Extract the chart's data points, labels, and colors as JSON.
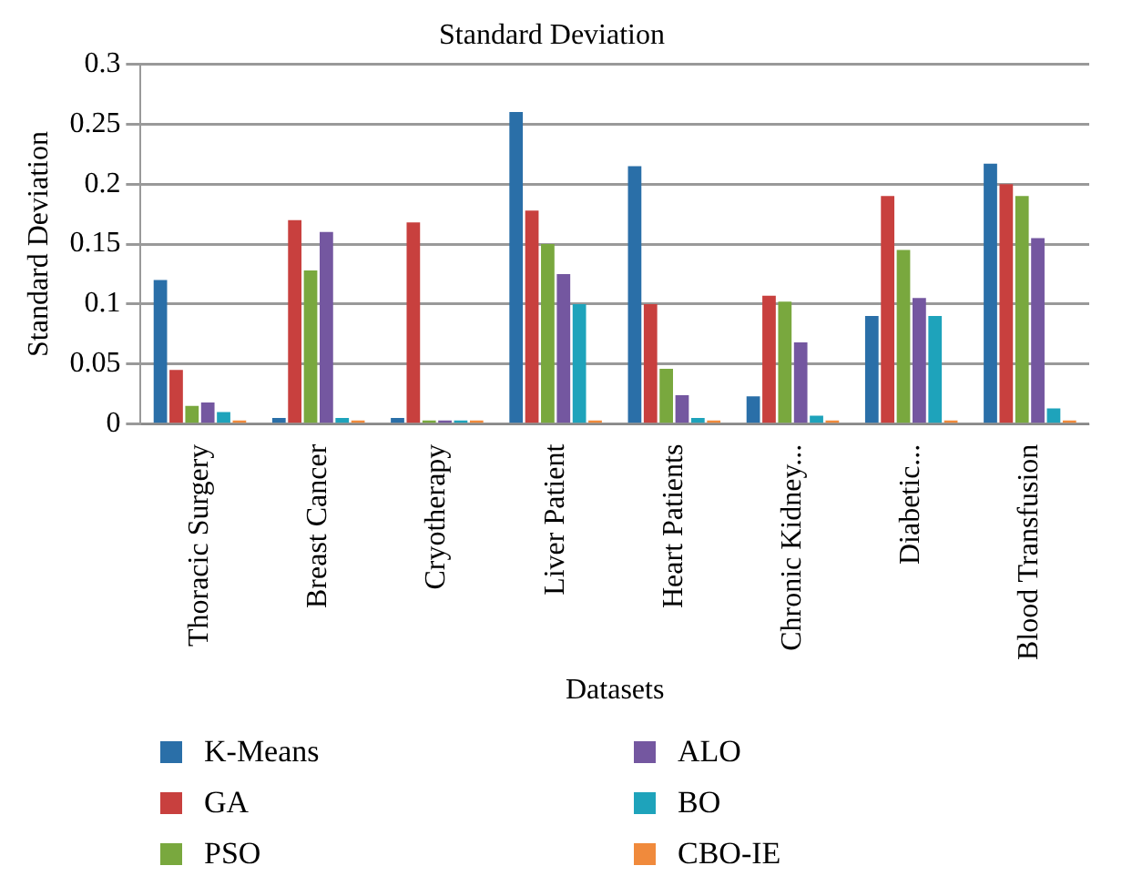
{
  "chart_data": {
    "type": "bar",
    "title": "Standard Deviation",
    "xlabel": "Datasets",
    "ylabel": "Standard Deviation",
    "categories": [
      "Thoracic Surgery",
      "Breast Cancer",
      "Cryotherapy",
      "Liver Patient",
      "Heart Patients",
      "Chronic Kidney...",
      "Diabetic...",
      "Blood Transfusion"
    ],
    "series": [
      {
        "name": "K-Means",
        "color": "#2a6fa8",
        "values": [
          0.12,
          0.005,
          0.005,
          0.26,
          0.215,
          0.023,
          0.09,
          0.217
        ]
      },
      {
        "name": "GA",
        "color": "#c8403e",
        "values": [
          0.045,
          0.17,
          0.168,
          0.178,
          0.1,
          0.107,
          0.19,
          0.2
        ]
      },
      {
        "name": "PSO",
        "color": "#79a83e",
        "values": [
          0.015,
          0.128,
          0.003,
          0.15,
          0.046,
          0.102,
          0.145,
          0.19
        ]
      },
      {
        "name": "ALO",
        "color": "#7457a0",
        "values": [
          0.018,
          0.16,
          0.003,
          0.125,
          0.024,
          0.068,
          0.105,
          0.155
        ]
      },
      {
        "name": "BO",
        "color": "#1ea3bb",
        "values": [
          0.01,
          0.005,
          0.003,
          0.1,
          0.005,
          0.007,
          0.09,
          0.013
        ]
      },
      {
        "name": "CBO-IE",
        "color": "#f08a3c",
        "values": [
          0.003,
          0.003,
          0.003,
          0.003,
          0.003,
          0.003,
          0.003,
          0.003
        ]
      }
    ],
    "ylim": [
      0,
      0.3
    ],
    "yticks": [
      0,
      0.05,
      0.1,
      0.15,
      0.2,
      0.25,
      0.3
    ],
    "grid": "y",
    "legend": "bottom"
  }
}
